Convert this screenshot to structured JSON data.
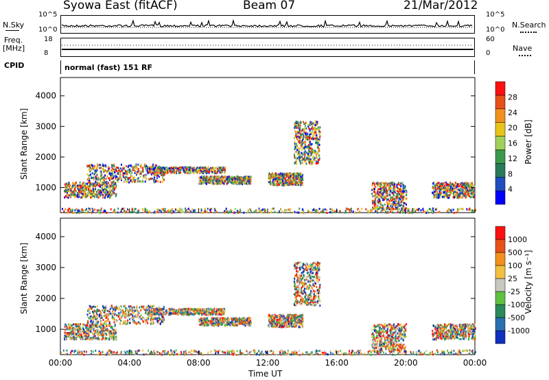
{
  "header": {
    "radar": "Syowa East (fitACF)",
    "beam": "Beam 07",
    "date": "21/Mar/2012"
  },
  "top_panels": {
    "nsky_label": "N.Sky",
    "nsky_ticks": [
      "10^5",
      "10^0"
    ],
    "nsearch_label": "N.Search",
    "nsearch_ticks": [
      "10^5",
      "10^0"
    ],
    "freq_label_line1": "Freq.",
    "freq_label_line2": "[MHz]",
    "freq_ticks": [
      "18",
      "8"
    ],
    "nave_label": "Nave",
    "nave_ticks": [
      "60",
      "0"
    ],
    "cpid_label": "CPID",
    "cpid_text": "normal (fast) 151 RF"
  },
  "chart_data": [
    {
      "type": "heatmap",
      "name": "power",
      "ylabel": "Slant Range [km]",
      "yticks": [
        1000,
        2000,
        3000,
        4000
      ],
      "ylim": [
        180,
        4600
      ],
      "xlabel": "Time UT",
      "xticks": [
        "00:00",
        "04:00",
        "08:00",
        "12:00",
        "16:00",
        "20:00",
        "00:00"
      ],
      "xlim_hours": [
        0,
        24
      ],
      "colorbar": {
        "label": "Power [dB]",
        "ticks": [
          "28",
          "24",
          "20",
          "16",
          "12",
          "8",
          "4"
        ],
        "colors": [
          "#0000ff",
          "#1f4fbf",
          "#2a7a5a",
          "#3c9a4c",
          "#9fd15a",
          "#e8c41a",
          "#f2901e",
          "#e8501a",
          "#ff1010"
        ]
      }
    },
    {
      "type": "heatmap",
      "name": "velocity",
      "ylabel": "Slant Range [km]",
      "yticks": [
        1000,
        2000,
        3000,
        4000
      ],
      "ylim": [
        180,
        4600
      ],
      "xlabel": "Time UT",
      "xticks": [
        "00:00",
        "04:00",
        "08:00",
        "12:00",
        "16:00",
        "20:00",
        "00:00"
      ],
      "xlim_hours": [
        0,
        24
      ],
      "colorbar": {
        "label": "Velocity [m s⁻¹]",
        "ticks": [
          "1000",
          "500",
          "100",
          "25",
          "-25",
          "-100",
          "-500",
          "-1000"
        ],
        "colors": [
          "#1030c0",
          "#2a70b0",
          "#2a8a5a",
          "#60c040",
          "#c8c8c0",
          "#f2c040",
          "#f2901e",
          "#e8501a",
          "#ff1010"
        ]
      }
    }
  ],
  "x_axis_label": "Time UT",
  "x_tick_labels": [
    "00:00",
    "04:00",
    "08:00",
    "12:00",
    "16:00",
    "20:00",
    "00:00"
  ]
}
